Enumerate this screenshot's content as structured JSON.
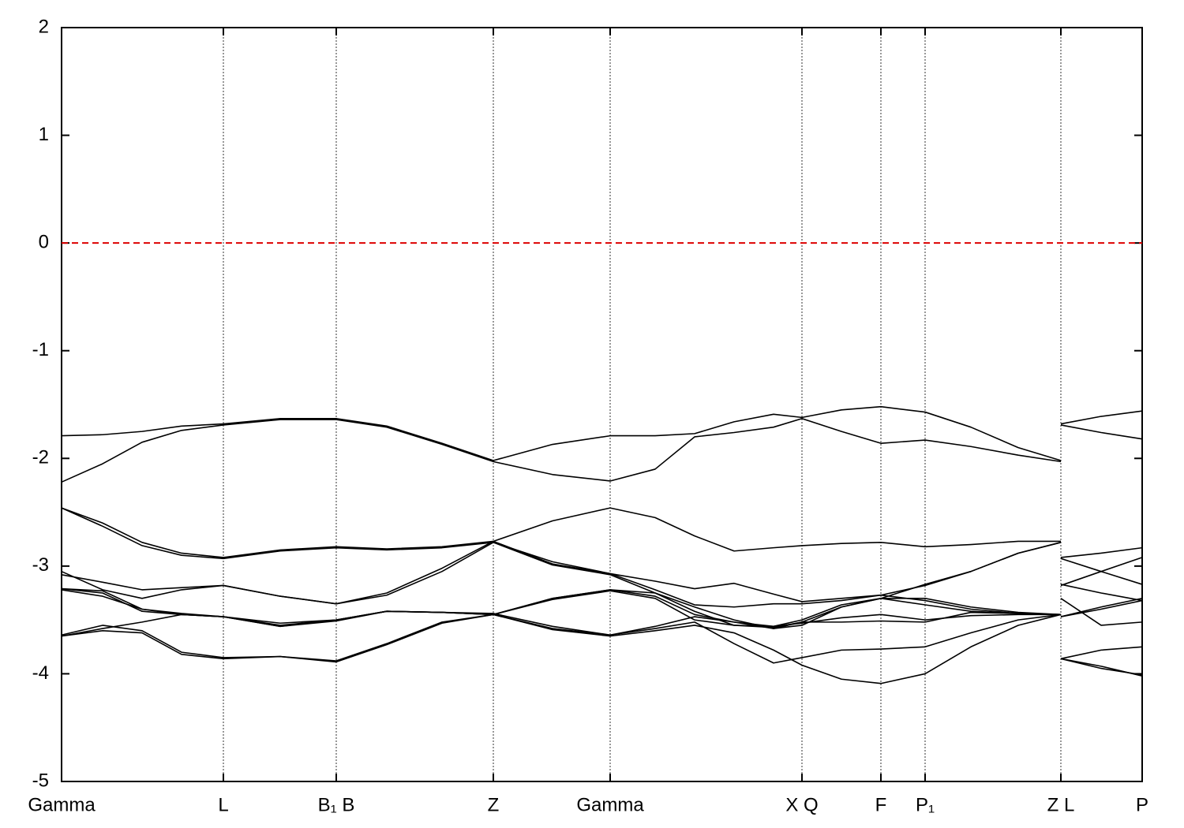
{
  "chart_data": {
    "type": "line",
    "x": [
      0,
      0.52,
      1.02,
      1.52,
      2.05,
      2.77,
      3.48,
      4.12,
      4.82,
      5.47,
      6.22,
      6.95,
      7.52,
      8.02,
      8.52,
      9.02,
      9.38,
      9.88,
      10.38,
      10.94,
      11.52,
      12.12,
      12.66,
      12.66,
      12.66,
      13.17,
      13.69
    ],
    "series": [
      {
        "color": "#000000",
        "values": [
          -1.79,
          -1.78,
          -1.75,
          -1.7,
          -1.68,
          -1.63,
          -1.63,
          -1.7,
          -1.86,
          -2.02,
          -1.87,
          -1.79,
          -1.79,
          -1.77,
          -1.66,
          -1.59,
          -1.62,
          -1.55,
          -1.52,
          -1.57,
          -1.71,
          -1.9,
          -2.02,
          null,
          -1.68,
          -1.61,
          -1.56
        ]
      },
      {
        "color": "#000000",
        "values": [
          -2.22,
          -2.05,
          -1.85,
          -1.74,
          -1.69,
          -1.64,
          -1.64,
          -1.71,
          -1.87,
          -2.03,
          -2.15,
          -2.21,
          -2.1,
          -1.8,
          -1.76,
          -1.71,
          -1.63,
          -1.75,
          -1.86,
          -1.83,
          -1.89,
          -1.97,
          -2.03,
          null,
          -1.69,
          -1.76,
          -1.82
        ]
      },
      {
        "color": "#000000",
        "values": [
          -2.46,
          -2.6,
          -2.78,
          -2.88,
          -2.92,
          -2.85,
          -2.82,
          -2.84,
          -2.82,
          -2.77,
          -2.58,
          -2.46,
          -2.55,
          -2.72,
          -2.86,
          -2.83,
          -2.81,
          -2.79,
          -2.78,
          -2.82,
          -2.8,
          -2.77,
          -2.77,
          null,
          -2.92,
          -2.88,
          -2.83
        ]
      },
      {
        "color": "#000000",
        "values": [
          -2.46,
          -2.63,
          -2.81,
          -2.9,
          -2.93,
          -2.86,
          -2.83,
          -2.85,
          -2.83,
          -2.78,
          -2.96,
          -3.07,
          -3.14,
          -3.21,
          -3.16,
          -3.26,
          -3.33,
          -3.3,
          -3.27,
          -3.18,
          -3.05,
          -2.88,
          -2.78,
          null,
          -2.93,
          -3.05,
          -3.17
        ]
      },
      {
        "color": "#000000",
        "values": [
          -3.05,
          -3.22,
          -3.3,
          -3.22,
          -3.18,
          -3.28,
          -3.35,
          -3.25,
          -3.02,
          -2.77,
          -2.98,
          -3.07,
          -3.22,
          -3.36,
          -3.38,
          -3.35,
          -3.35,
          -3.32,
          -3.27,
          -3.32,
          -3.4,
          -3.44,
          -3.45,
          null,
          -3.18,
          -3.05,
          -2.92
        ]
      },
      {
        "color": "#000000",
        "values": [
          -3.08,
          -3.15,
          -3.22,
          -3.2,
          -3.18,
          -3.28,
          -3.35,
          -3.27,
          -3.05,
          -2.78,
          -2.99,
          -3.08,
          -3.25,
          -3.42,
          -3.55,
          -3.56,
          -3.5,
          -3.36,
          -3.3,
          -3.17,
          -3.05,
          -2.88,
          -2.78,
          null,
          -3.47,
          -3.4,
          -3.32
        ]
      },
      {
        "color": "#000000",
        "values": [
          -3.21,
          -3.25,
          -3.42,
          -3.45,
          -3.47,
          -3.55,
          -3.5,
          -3.42,
          -3.43,
          -3.45,
          -3.3,
          -3.22,
          -3.25,
          -3.38,
          -3.5,
          -3.58,
          -3.55,
          -3.38,
          -3.3,
          -3.36,
          -3.42,
          -3.44,
          -3.45,
          null,
          -3.3,
          -3.55,
          -3.52
        ]
      },
      {
        "color": "#000000",
        "values": [
          -3.22,
          -3.28,
          -3.4,
          -3.44,
          -3.47,
          -3.56,
          -3.51,
          -3.42,
          -3.43,
          -3.45,
          -3.31,
          -3.23,
          -3.3,
          -3.5,
          -3.55,
          -3.57,
          -3.52,
          -3.52,
          -3.51,
          -3.52,
          -3.43,
          -3.44,
          -3.45,
          null,
          -3.86,
          -3.78,
          -3.75
        ]
      },
      {
        "color": "#000000",
        "values": [
          -3.64,
          -3.55,
          -3.6,
          -3.8,
          -3.85,
          -3.84,
          -3.88,
          -3.72,
          -3.52,
          -3.45,
          -3.58,
          -3.64,
          -3.58,
          -3.52,
          -3.72,
          -3.9,
          -3.85,
          -3.78,
          -3.77,
          -3.75,
          -3.62,
          -3.5,
          -3.45,
          null,
          -3.86,
          -3.95,
          -4.01
        ]
      },
      {
        "color": "#000000",
        "values": [
          -3.65,
          -3.6,
          -3.62,
          -3.82,
          -3.86,
          -3.84,
          -3.89,
          -3.73,
          -3.53,
          -3.45,
          -3.59,
          -3.65,
          -3.6,
          -3.55,
          -3.62,
          -3.78,
          -3.92,
          -4.05,
          -4.09,
          -4.0,
          -3.75,
          -3.55,
          -3.45,
          null,
          -3.86,
          -3.93,
          -4.02
        ]
      },
      {
        "color": "#000000",
        "values": [
          -3.65,
          -3.58,
          -3.52,
          -3.45,
          -3.47,
          -3.56,
          -3.5,
          -3.42,
          -3.43,
          -3.44,
          -3.56,
          -3.64,
          -3.56,
          -3.47,
          -3.52,
          -3.58,
          -3.52,
          -3.38,
          -3.3,
          -3.3,
          -3.38,
          -3.43,
          -3.45,
          null,
          -3.47,
          -3.38,
          -3.3
        ]
      },
      {
        "color": "#000000",
        "values": [
          -3.21,
          -3.23,
          -3.4,
          -3.45,
          -3.47,
          -3.53,
          -3.5,
          -3.42,
          -3.43,
          -3.45,
          -3.3,
          -3.22,
          -3.28,
          -3.45,
          -3.52,
          -3.56,
          -3.53,
          -3.48,
          -3.45,
          -3.5,
          -3.46,
          -3.45,
          -3.45,
          null,
          -3.17,
          -3.25,
          -3.32
        ]
      }
    ],
    "hline": {
      "value": 0,
      "color": "#dd0000"
    },
    "xlim": [
      0,
      13.69
    ],
    "xticks": [
      {
        "value": 0,
        "label": "Gamma"
      },
      {
        "value": 2.05,
        "label": "L"
      },
      {
        "value": 3.48,
        "label": "B₁ B"
      },
      {
        "value": 5.47,
        "label": "Z"
      },
      {
        "value": 6.95,
        "label": "Gamma"
      },
      {
        "value": 9.38,
        "label": "X Q"
      },
      {
        "value": 10.38,
        "label": "F"
      },
      {
        "value": 10.94,
        "label": "P₁"
      },
      {
        "value": 12.66,
        "label": "Z L"
      },
      {
        "value": 13.69,
        "label": "P"
      }
    ],
    "ylim": [
      -5,
      2
    ],
    "yticks": [
      -5,
      -4,
      -3,
      -2,
      -1,
      0,
      1,
      2
    ],
    "grid": true
  }
}
